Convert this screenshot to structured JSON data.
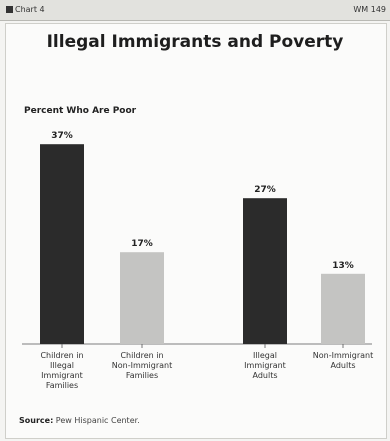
{
  "header": {
    "tag": "Chart 4",
    "code": "WM 149"
  },
  "chart_data": {
    "type": "bar",
    "title": "Illegal Immigrants and Poverty",
    "ylabel": "Percent Who Are Poor",
    "xlabel": "",
    "ylim": [
      0,
      40
    ],
    "grid": false,
    "categories": [
      [
        "Children in",
        "Illegal",
        "Immigrant",
        "Families"
      ],
      [
        "Children in",
        "Non-Immigrant",
        "Families"
      ],
      [
        "Illegal",
        "Immigrant",
        "Adults"
      ],
      [
        "Non-Immigrant",
        "Adults"
      ]
    ],
    "values": [
      37,
      17,
      27,
      13
    ],
    "value_labels": [
      "37%",
      "17%",
      "27%",
      "13%"
    ],
    "colors": [
      "#2b2b2b",
      "#c4c4c2",
      "#2b2b2b",
      "#c4c4c2"
    ]
  },
  "footer": {
    "source_label": "Source:",
    "source_text": " Pew Hispanic Center."
  }
}
